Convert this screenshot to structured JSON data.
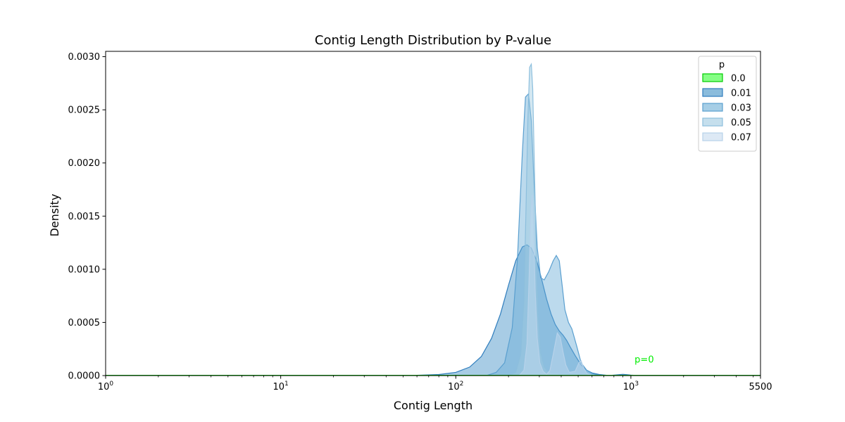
{
  "chart_data": {
    "type": "area",
    "title": "Contig Length Distribution by P-value",
    "xlabel": "Contig Length",
    "ylabel": "Density",
    "xscale": "log",
    "xlim": [
      1,
      5500
    ],
    "ylim": [
      0,
      0.00305
    ],
    "x_ticks": [
      {
        "value": 1,
        "label": "10",
        "exp": "0"
      },
      {
        "value": 10,
        "label": "10",
        "exp": "1"
      },
      {
        "value": 100,
        "label": "10",
        "exp": "2"
      },
      {
        "value": 1000,
        "label": "10",
        "exp": "3"
      },
      {
        "value": 5500,
        "label": "5500",
        "exp": ""
      }
    ],
    "y_ticks": [
      {
        "value": 0,
        "label": "0.0000"
      },
      {
        "value": 0.0005,
        "label": "0.0005"
      },
      {
        "value": 0.001,
        "label": "0.0010"
      },
      {
        "value": 0.0015,
        "label": "0.0015"
      },
      {
        "value": 0.002,
        "label": "0.0020"
      },
      {
        "value": 0.0025,
        "label": "0.0025"
      },
      {
        "value": 0.003,
        "label": "0.0030"
      }
    ],
    "legend": {
      "title": "p",
      "placement": "top-right"
    },
    "annotation": {
      "text": "p=0",
      "x": 1050,
      "y": 0.00015,
      "color": "#00ee00"
    },
    "series": [
      {
        "name": "0.0",
        "fill": "#66ff66",
        "stroke": "#00cc00",
        "x": [
          1,
          5500
        ],
        "y": [
          0,
          0
        ]
      },
      {
        "name": "0.01",
        "fill": "#3d8fc5",
        "stroke": "#2f7dbd",
        "x": [
          40,
          60,
          80,
          100,
          120,
          140,
          160,
          180,
          200,
          220,
          240,
          255,
          270,
          290,
          310,
          330,
          350,
          370,
          390,
          410,
          430,
          450,
          480,
          520,
          560,
          600,
          660,
          750,
          900,
          1000,
          1100
        ],
        "y": [
          0,
          3e-06,
          1e-05,
          3e-05,
          8e-05,
          0.00018,
          0.00035,
          0.00058,
          0.00085,
          0.00108,
          0.00121,
          0.00123,
          0.0012,
          0.00108,
          0.0009,
          0.00072,
          0.00058,
          0.00048,
          0.00042,
          0.00038,
          0.00033,
          0.00027,
          0.00019,
          0.0001,
          5e-05,
          2.5e-05,
          1e-05,
          0,
          1.2e-05,
          4e-06,
          0
        ]
      },
      {
        "name": "0.03",
        "fill": "#6aaed6",
        "stroke": "#5a9fcf",
        "x": [
          150,
          170,
          190,
          210,
          225,
          240,
          250,
          260,
          270,
          280,
          292,
          305,
          320,
          340,
          360,
          375,
          390,
          405,
          420,
          440,
          460,
          490,
          520,
          560,
          600,
          650,
          700
        ],
        "y": [
          0,
          3e-05,
          0.00012,
          0.00045,
          0.0011,
          0.0021,
          0.00262,
          0.00265,
          0.0024,
          0.0018,
          0.0012,
          0.00092,
          0.0009,
          0.00098,
          0.00108,
          0.00113,
          0.00108,
          0.00085,
          0.00062,
          0.0005,
          0.00044,
          0.00028,
          0.00012,
          5e-05,
          2e-05,
          5e-06,
          0
        ]
      },
      {
        "name": "0.05",
        "fill": "#9ecae1",
        "stroke": "#8dbfdd",
        "x": [
          200,
          220,
          235,
          245,
          252,
          258,
          264,
          270,
          275,
          280,
          287,
          295,
          305,
          320,
          340,
          360,
          380,
          400,
          420,
          450
        ],
        "y": [
          0,
          3e-05,
          0.0002,
          0.0007,
          0.0016,
          0.0024,
          0.0029,
          0.00293,
          0.0027,
          0.0021,
          0.0013,
          0.0006,
          0.00022,
          8e-05,
          3e-05,
          2e-05,
          2e-05,
          1e-05,
          5e-06,
          0
        ]
      },
      {
        "name": "0.07",
        "fill": "#c6dbef",
        "stroke": "#b7d2ea",
        "x": [
          230,
          245,
          255,
          262,
          268,
          273,
          278,
          284,
          292,
          302,
          315,
          330,
          345,
          360,
          380,
          395,
          410,
          425,
          445,
          480,
          505,
          520,
          535,
          560,
          600
        ],
        "y": [
          0,
          5e-05,
          0.0003,
          0.0009,
          0.0015,
          0.0017,
          0.0014,
          0.0008,
          0.00035,
          0.00012,
          4e-05,
          1e-05,
          5e-05,
          0.0002,
          0.0004,
          0.00036,
          0.00022,
          0.0001,
          3e-05,
          4e-05,
          0.00012,
          0.00014,
          8e-05,
          2e-05,
          0
        ]
      }
    ]
  }
}
